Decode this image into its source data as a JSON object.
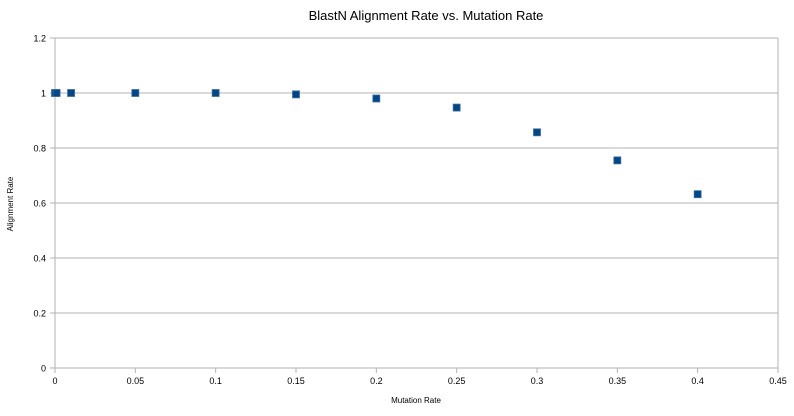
{
  "chart_data": {
    "type": "scatter",
    "title": "BlastN Alignment Rate vs. Mutation Rate",
    "xlabel": "Mutation Rate",
    "ylabel": "Alignment Rate",
    "xlim": [
      0,
      0.45
    ],
    "ylim": [
      0,
      1.2
    ],
    "x_ticks": [
      "0",
      "0.05",
      "0.1",
      "0.15",
      "0.2",
      "0.25",
      "0.3",
      "0.35",
      "0.4",
      "0.45"
    ],
    "y_ticks": [
      "0",
      "0.2",
      "0.4",
      "0.6",
      "0.8",
      "1",
      "1.2"
    ],
    "grid": "horizontal",
    "legend": "none",
    "x": [
      0,
      0.001,
      0.01,
      0.05,
      0.1,
      0.15,
      0.2,
      0.25,
      0.3,
      0.35,
      0.4
    ],
    "y": [
      1.0,
      1.0,
      1.0,
      1.0,
      1.0,
      0.995,
      0.98,
      0.947,
      0.857,
      0.755,
      0.632
    ],
    "colors": {
      "marker_fill": "#004586",
      "marker_edge": "#3f6fa0",
      "grid": "#b3b3b3",
      "axis": "#b3b3b3"
    }
  }
}
